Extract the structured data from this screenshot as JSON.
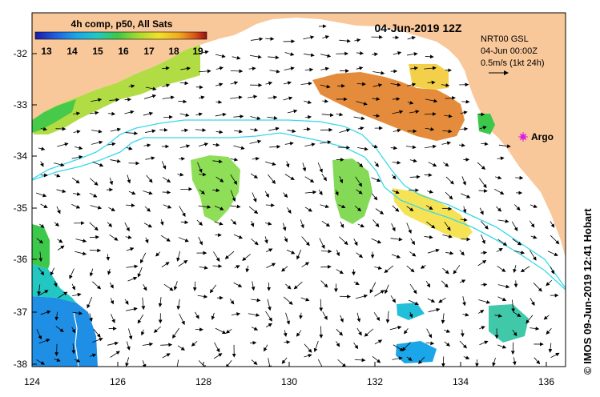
{
  "title": "4h comp, p50, All Sats",
  "timestamp": "04-Jun-2019 12Z",
  "colorbar": {
    "ticks": [
      "13",
      "14",
      "15",
      "16",
      "17",
      "18",
      "19"
    ],
    "colors": [
      "#1a1aa8",
      "#1f5fe0",
      "#1aa6e8",
      "#22c7c2",
      "#3cc84a",
      "#a8d830",
      "#f2e12a",
      "#f2a81f",
      "#d8561a",
      "#9a1010"
    ]
  },
  "currents": {
    "product": "NRT00 GSL",
    "time": "04-Jun 00:00Z",
    "scale": "0.5m/s (1kt 24h)"
  },
  "marker": {
    "label": "Argo",
    "color": "#e020e0"
  },
  "axes": {
    "x_ticks": [
      "124",
      "126",
      "128",
      "130",
      "132",
      "134",
      "136"
    ],
    "y_ticks": [
      "-32",
      "-33",
      "-34",
      "-35",
      "-36",
      "-37",
      "-38"
    ]
  },
  "colors": {
    "land": "#f9c89a",
    "contour": "#3ad8e8",
    "ocean": "#ffffff"
  },
  "credit": "© IMOS 09-Jun-2019 12:41 Hobart"
}
